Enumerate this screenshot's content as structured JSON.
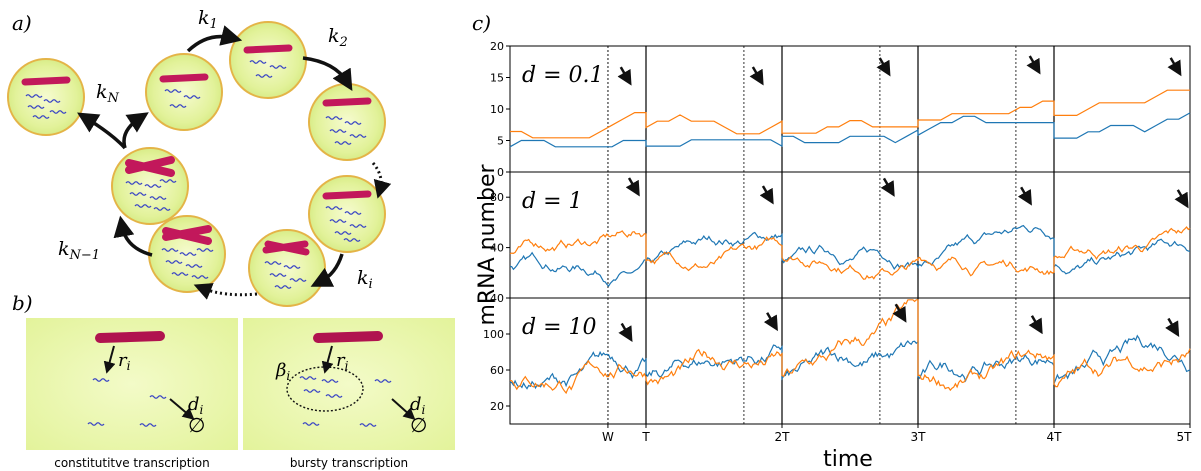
{
  "panels": {
    "a": {
      "label": "a)"
    },
    "b": {
      "label": "b)"
    },
    "c": {
      "label": "c)"
    }
  },
  "cycle": {
    "rates": [
      "k1",
      "k2",
      "ki",
      "kN-1",
      "kN"
    ]
  },
  "transcription": {
    "left_caption": "constitutitve transcription",
    "right_caption": "bursty transcription",
    "rate_label": "r",
    "decay_label": "d",
    "burst_label": "β",
    "subscript": "i",
    "null_symbol": "∅"
  },
  "plot": {
    "ylabel": "mRNA number",
    "xlabel": "time",
    "x_ticks": [
      "W",
      "T",
      "2T",
      "3T",
      "4T",
      "5T"
    ],
    "rows": [
      {
        "label": "d = 0.1",
        "d_value": "0.1",
        "y_ticks": [
          "20",
          "15",
          "10",
          "5",
          "0"
        ],
        "ylim": [
          0,
          20
        ]
      },
      {
        "label": "d = 1",
        "d_value": "1",
        "y_ticks": [
          "80",
          "40"
        ],
        "ylim": [
          0,
          100
        ]
      },
      {
        "label": "d = 10",
        "d_value": "10",
        "y_ticks": [
          "140",
          "100",
          "60",
          "20"
        ],
        "ylim": [
          0,
          140
        ]
      }
    ],
    "series_colors": {
      "orange": "#ff7f0e",
      "blue": "#1f77b4"
    }
  },
  "colors": {
    "cell_fill": "#eef7a8",
    "cell_stroke": "#e6b64a",
    "chromosome": "#c2185b",
    "mrna": "#3b46c4",
    "bg_green": "#e6f5a0"
  }
}
